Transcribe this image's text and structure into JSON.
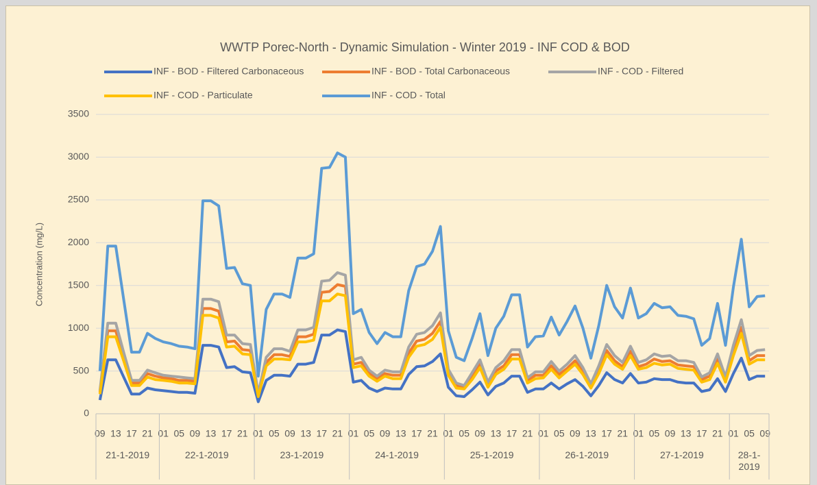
{
  "chart_data": {
    "type": "line",
    "title": "WWTP Porec-North - Dynamic Simulation - Winter 2019 - INF COD & BOD",
    "y_label": "Concentration (mg/L)",
    "ylim": [
      0,
      3500
    ],
    "yticks": [
      0,
      500,
      1000,
      1500,
      2000,
      2500,
      3000,
      3500
    ],
    "grid": true,
    "categories": [
      "09",
      null,
      "13",
      null,
      "17",
      null,
      "21",
      null,
      "01",
      null,
      "05",
      null,
      "09",
      null,
      "13",
      null,
      "17",
      null,
      "21",
      null,
      "01",
      null,
      "05",
      null,
      "09",
      null,
      "13",
      null,
      "17",
      null,
      "21",
      null,
      "01",
      null,
      "05",
      null,
      "09",
      null,
      "13",
      null,
      "17",
      null,
      "21",
      null,
      "01",
      null,
      "05",
      null,
      "09",
      null,
      "13",
      null,
      "17",
      null,
      "21",
      null,
      "01",
      null,
      "05",
      null,
      "09",
      null,
      "13",
      null,
      "17",
      null,
      "21",
      null,
      "01",
      null,
      "05",
      null,
      "09",
      null,
      "13",
      null,
      "17",
      null,
      "21",
      null,
      "01",
      null,
      "05",
      null,
      "09"
    ],
    "x_groups": [
      {
        "label": "21-1-2019",
        "count": 8
      },
      {
        "label": "22-1-2019",
        "count": 12
      },
      {
        "label": "23-1-2019",
        "count": 12
      },
      {
        "label": "24-1-2019",
        "count": 12
      },
      {
        "label": "25-1-2019",
        "count": 12
      },
      {
        "label": "26-1-2019",
        "count": 12
      },
      {
        "label": "27-1-2019",
        "count": 12
      },
      {
        "label": "28-1-2019",
        "count": 5
      }
    ],
    "series": [
      {
        "name": "INF - BOD - Filtered Carbonaceous",
        "color": "#4472c4",
        "values": [
          160,
          630,
          630,
          430,
          230,
          230,
          300,
          280,
          270,
          260,
          250,
          250,
          240,
          800,
          800,
          780,
          540,
          550,
          490,
          480,
          140,
          390,
          450,
          450,
          440,
          580,
          580,
          600,
          920,
          920,
          980,
          960,
          370,
          390,
          300,
          260,
          300,
          290,
          290,
          460,
          550,
          560,
          610,
          700,
          310,
          210,
          200,
          280,
          370,
          220,
          320,
          360,
          440,
          440,
          250,
          290,
          290,
          360,
          290,
          350,
          400,
          320,
          210,
          330,
          480,
          400,
          360,
          470,
          360,
          370,
          410,
          400,
          400,
          370,
          360,
          360,
          260,
          280,
          410,
          260,
          470,
          650,
          400,
          440,
          440
        ]
      },
      {
        "name": "INF - BOD - Total Carbonaceous",
        "color": "#ed7d31",
        "values": [
          250,
          970,
          970,
          660,
          360,
          360,
          470,
          440,
          420,
          410,
          390,
          390,
          380,
          1230,
          1230,
          1200,
          840,
          850,
          750,
          740,
          220,
          600,
          690,
          690,
          670,
          900,
          900,
          930,
          1420,
          1430,
          1510,
          1490,
          580,
          600,
          470,
          410,
          470,
          450,
          450,
          710,
          850,
          870,
          940,
          1080,
          480,
          330,
          310,
          440,
          580,
          340,
          500,
          560,
          690,
          690,
          390,
          450,
          450,
          560,
          460,
          530,
          620,
          500,
          320,
          510,
          740,
          620,
          550,
          730,
          550,
          580,
          640,
          610,
          620,
          570,
          560,
          550,
          400,
          440,
          640,
          400,
          730,
          1010,
          620,
          680,
          680
        ]
      },
      {
        "name": "INF - COD - Filtered",
        "color": "#a5a5a5",
        "values": [
          270,
          1060,
          1060,
          720,
          390,
          390,
          510,
          480,
          450,
          440,
          430,
          420,
          410,
          1340,
          1340,
          1310,
          920,
          920,
          820,
          810,
          240,
          660,
          760,
          760,
          730,
          980,
          980,
          1010,
          1550,
          1560,
          1650,
          1620,
          630,
          660,
          510,
          440,
          510,
          490,
          490,
          780,
          930,
          950,
          1030,
          1180,
          520,
          360,
          330,
          480,
          630,
          370,
          540,
          620,
          750,
          750,
          420,
          490,
          490,
          610,
          500,
          580,
          680,
          540,
          350,
          560,
          810,
          680,
          600,
          790,
          600,
          630,
          700,
          670,
          680,
          620,
          620,
          600,
          430,
          480,
          700,
          430,
          800,
          1100,
          680,
          740,
          750
        ]
      },
      {
        "name": "INF - COD - Particulate",
        "color": "#ffc000",
        "values": [
          230,
          900,
          900,
          620,
          330,
          330,
          430,
          400,
          390,
          380,
          360,
          360,
          350,
          1150,
          1150,
          1120,
          780,
          790,
          700,
          690,
          200,
          560,
          640,
          640,
          630,
          840,
          840,
          860,
          1320,
          1320,
          1400,
          1380,
          540,
          560,
          440,
          380,
          440,
          410,
          410,
          660,
          790,
          810,
          870,
          1010,
          450,
          300,
          290,
          400,
          540,
          310,
          460,
          520,
          640,
          640,
          360,
          410,
          420,
          520,
          420,
          500,
          580,
          460,
          300,
          470,
          690,
          580,
          520,
          680,
          520,
          540,
          590,
          570,
          580,
          530,
          520,
          510,
          370,
          400,
          590,
          370,
          680,
          940,
          580,
          630,
          630
        ]
      },
      {
        "name": "INF - COD - Total",
        "color": "#5b9bd5",
        "values": [
          500,
          1960,
          1960,
          1340,
          720,
          720,
          940,
          880,
          840,
          820,
          790,
          780,
          760,
          2490,
          2490,
          2430,
          1700,
          1710,
          1520,
          1500,
          440,
          1220,
          1400,
          1400,
          1360,
          1820,
          1820,
          1870,
          2870,
          2880,
          3050,
          3000,
          1170,
          1220,
          950,
          820,
          950,
          900,
          900,
          1440,
          1720,
          1750,
          1900,
          2190,
          970,
          660,
          620,
          880,
          1170,
          680,
          1000,
          1140,
          1390,
          1390,
          780,
          900,
          910,
          1130,
          920,
          1080,
          1260,
          1000,
          650,
          1030,
          1500,
          1250,
          1120,
          1470,
          1120,
          1170,
          1290,
          1240,
          1250,
          1150,
          1140,
          1110,
          800,
          880,
          1290,
          800,
          1480,
          2040,
          1250,
          1370,
          1380
        ]
      }
    ]
  }
}
